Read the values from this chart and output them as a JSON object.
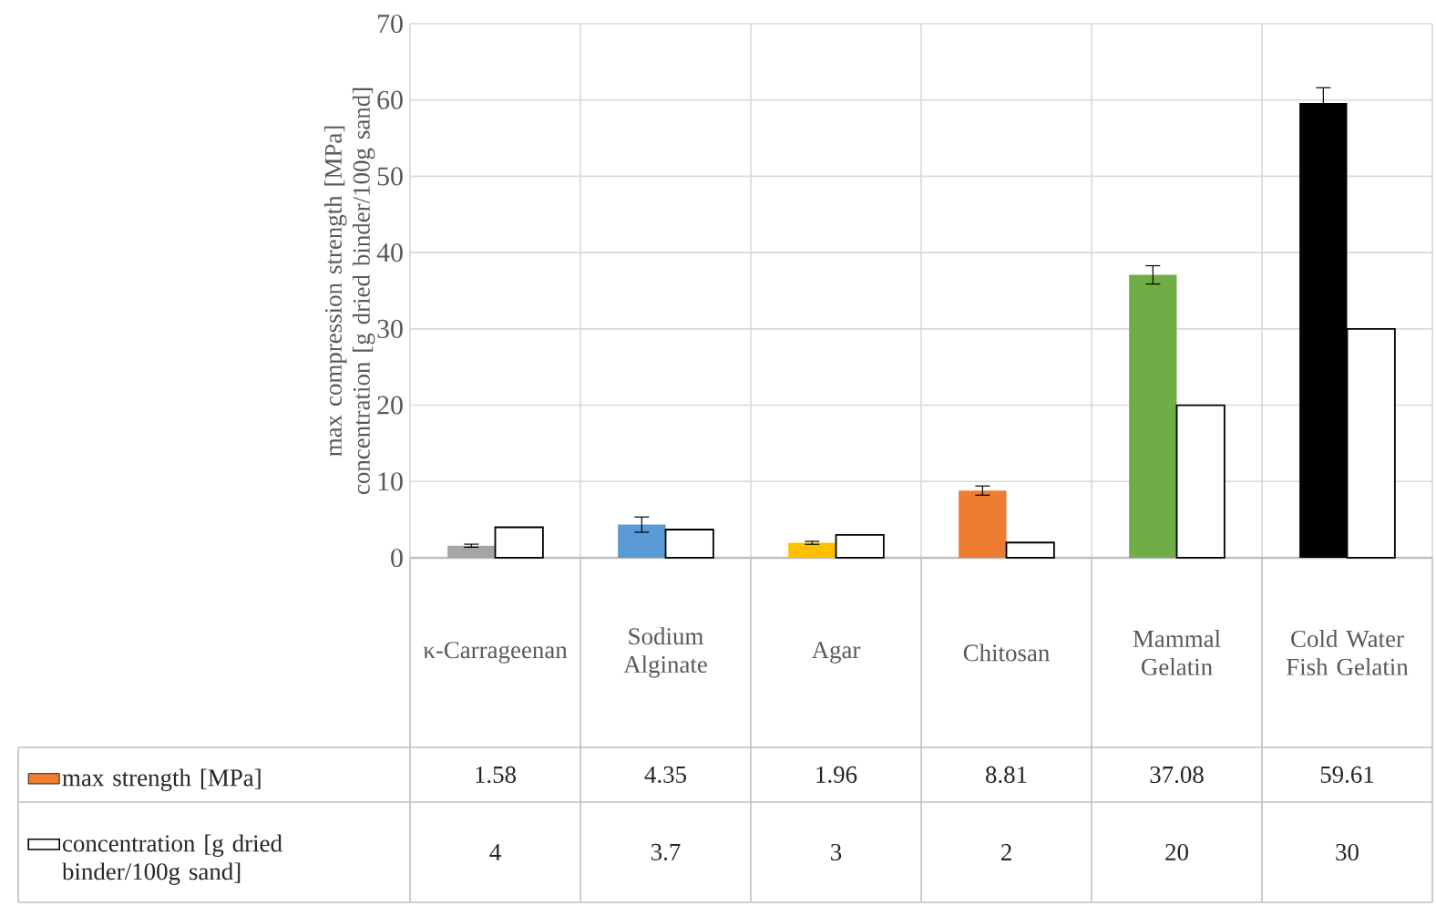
{
  "chart_data": {
    "type": "bar",
    "ylabel": "max compression strength [MPa] concentration [g dried binder/100g sand]",
    "categories": [
      "κ-Carrageenan",
      "Sodium Alginate",
      "Agar",
      "Chitosan",
      "Mammal Gelatin",
      "Cold Water Fish Gelatin"
    ],
    "series": [
      {
        "name": "max strength [MPa]",
        "color": "#ed7d31",
        "colors": [
          "#a5a5a5",
          "#5b9bd5",
          "#ffc000",
          "#ed7d31",
          "#70ad47",
          "#000000"
        ],
        "values": [
          1.58,
          4.35,
          1.96,
          8.81,
          37.08,
          59.61
        ],
        "errors": [
          0.2,
          1.0,
          0.2,
          0.6,
          1.2,
          2.0
        ]
      },
      {
        "name": "concentration [g dried binder/100g sand]",
        "color": "#ffffff",
        "values": [
          4,
          3.7,
          3,
          2,
          20,
          30
        ]
      }
    ],
    "ylim": [
      0,
      70
    ],
    "yticks": [
      0,
      10,
      20,
      30,
      40,
      50,
      60,
      70
    ],
    "grid": true,
    "legend": "bottom",
    "data_labels": true
  }
}
